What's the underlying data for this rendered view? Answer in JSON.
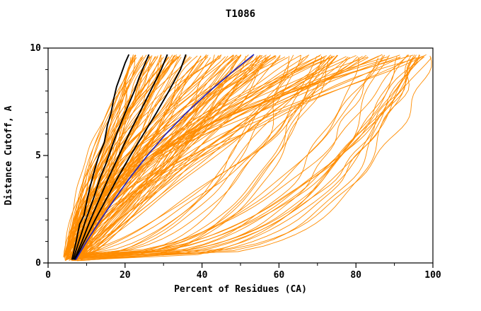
{
  "chart_data": {
    "type": "line",
    "title": "T1086",
    "xlabel": "Percent of Residues (CA)",
    "ylabel": "Distance Cutoff, A",
    "xlim": [
      0,
      100
    ],
    "ylim": [
      0,
      10
    ],
    "xticks": [
      0,
      20,
      40,
      60,
      80,
      100
    ],
    "yticks": [
      0,
      5,
      10
    ],
    "x_minor_step": 10,
    "y_minor_step": 1,
    "curve_y_top": 9.7,
    "grid": false,
    "legend": false,
    "colors": {
      "background": "#ffffff",
      "axis": "#000000",
      "orange_models": "#ff8c00",
      "black_models": "#000000",
      "blue_model": "#2222bb"
    },
    "highlight_series": [
      {
        "name": "model-black-1",
        "color": "#000000",
        "width": 1.9,
        "points": [
          [
            6.2,
            0.15
          ],
          [
            7.3,
            1
          ],
          [
            8.2,
            1.8
          ],
          [
            9.3,
            2.2
          ],
          [
            10.2,
            3
          ],
          [
            11,
            3.6
          ],
          [
            12.2,
            4.4
          ],
          [
            13.2,
            5
          ],
          [
            14.6,
            5.6
          ],
          [
            15.4,
            6.4
          ],
          [
            16.4,
            7
          ],
          [
            17,
            7.6
          ],
          [
            17.8,
            8.2
          ],
          [
            19,
            8.8
          ],
          [
            20,
            9.3
          ],
          [
            21,
            9.7
          ]
        ]
      },
      {
        "name": "model-black-2",
        "color": "#000000",
        "width": 1.9,
        "points": [
          [
            6.5,
            0.15
          ],
          [
            8,
            1
          ],
          [
            9.8,
            2
          ],
          [
            11.8,
            3
          ],
          [
            13.6,
            4
          ],
          [
            15,
            4.6
          ],
          [
            16.2,
            5.2
          ],
          [
            17.8,
            6
          ],
          [
            19.6,
            6.8
          ],
          [
            21,
            7.4
          ],
          [
            22.4,
            8
          ],
          [
            23.6,
            8.6
          ],
          [
            25,
            9.2
          ],
          [
            26.2,
            9.7
          ]
        ]
      },
      {
        "name": "model-black-3",
        "color": "#000000",
        "width": 1.9,
        "points": [
          [
            6.8,
            0.15
          ],
          [
            8.8,
            1
          ],
          [
            11,
            2
          ],
          [
            13.4,
            3
          ],
          [
            15.8,
            4
          ],
          [
            18.4,
            5
          ],
          [
            21,
            6
          ],
          [
            23.8,
            7
          ],
          [
            26.6,
            8
          ],
          [
            29.4,
            9
          ],
          [
            31,
            9.7
          ]
        ]
      },
      {
        "name": "model-black-4",
        "color": "#000000",
        "width": 1.9,
        "points": [
          [
            7,
            0.15
          ],
          [
            9.4,
            1
          ],
          [
            12.2,
            2
          ],
          [
            15.2,
            3
          ],
          [
            18.2,
            4
          ],
          [
            21.4,
            5
          ],
          [
            24.8,
            6
          ],
          [
            28.2,
            7
          ],
          [
            31.4,
            8
          ],
          [
            34.4,
            9
          ],
          [
            35.8,
            9.7
          ]
        ]
      },
      {
        "name": "model-blue",
        "color": "#2222bb",
        "width": 1.7,
        "points": [
          [
            7.2,
            0.15
          ],
          [
            10,
            1
          ],
          [
            13.6,
            2
          ],
          [
            17.4,
            3
          ],
          [
            21.4,
            4
          ],
          [
            25.8,
            5
          ],
          [
            30.6,
            6
          ],
          [
            36,
            7
          ],
          [
            42,
            8
          ],
          [
            48.6,
            9
          ],
          [
            53.5,
            9.7
          ]
        ]
      }
    ],
    "orange_spec": {
      "count": 160,
      "seed": 11,
      "x_start_range": [
        4,
        9
      ],
      "wiggle": 1.6,
      "groups": [
        {
          "weight": 0.5,
          "x_top_range": [
            22,
            60
          ],
          "shape_range": [
            0.7,
            1.9
          ]
        },
        {
          "weight": 0.22,
          "x_top_range": [
            55,
            82
          ],
          "shape_range": [
            0.6,
            1.9
          ]
        },
        {
          "weight": 0.08,
          "x_top_range": [
            82,
            100
          ],
          "shape_range": [
            1.2,
            2.2
          ]
        },
        {
          "weight": 0.12,
          "x_top_range": [
            93,
            100
          ],
          "shape_range": [
            0.15,
            0.45
          ]
        },
        {
          "weight": 0.08,
          "x_top_range": [
            60,
            90
          ],
          "shape_range": [
            0.25,
            0.55
          ]
        }
      ]
    }
  }
}
